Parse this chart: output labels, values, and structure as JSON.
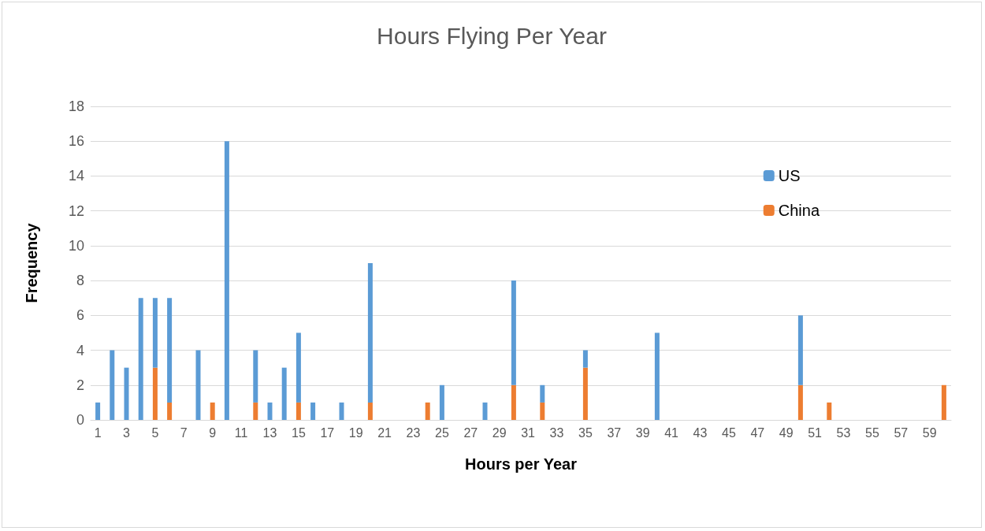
{
  "chart_data": {
    "type": "bar",
    "title": "Hours Flying Per Year",
    "xlabel": "Hours per Year",
    "ylabel": "Frequency",
    "x": [
      1,
      2,
      3,
      4,
      5,
      6,
      7,
      8,
      9,
      10,
      11,
      12,
      13,
      14,
      15,
      16,
      17,
      18,
      19,
      20,
      21,
      22,
      23,
      24,
      25,
      26,
      27,
      28,
      29,
      30,
      31,
      32,
      33,
      34,
      35,
      36,
      37,
      38,
      39,
      40,
      41,
      42,
      43,
      44,
      45,
      46,
      47,
      48,
      49,
      50,
      51,
      52,
      53,
      54,
      55,
      56,
      57,
      58,
      59,
      60
    ],
    "xlim": [
      0.5,
      60.5
    ],
    "xticks": [
      1,
      3,
      5,
      7,
      9,
      11,
      13,
      15,
      17,
      19,
      21,
      23,
      25,
      27,
      29,
      31,
      33,
      35,
      37,
      39,
      41,
      43,
      45,
      47,
      49,
      51,
      53,
      55,
      57,
      59
    ],
    "stacked": true,
    "series": [
      {
        "name": "China",
        "color": "#ed7d31",
        "values": [
          0,
          0,
          0,
          0,
          3,
          1,
          0,
          0,
          1,
          0,
          0,
          1,
          0,
          0,
          1,
          0,
          0,
          0,
          0,
          1,
          0,
          0,
          0,
          1,
          0,
          0,
          0,
          0,
          0,
          2,
          0,
          1,
          0,
          0,
          3,
          0,
          0,
          0,
          0,
          0,
          0,
          0,
          0,
          0,
          0,
          0,
          0,
          0,
          0,
          2,
          0,
          1,
          0,
          0,
          0,
          0,
          0,
          0,
          0,
          2
        ]
      },
      {
        "name": "US",
        "color": "#5b9bd5",
        "values": [
          1,
          4,
          3,
          7,
          4,
          6,
          0,
          4,
          0,
          16,
          0,
          3,
          1,
          3,
          4,
          1,
          0,
          1,
          0,
          8,
          0,
          0,
          0,
          0,
          2,
          0,
          0,
          1,
          0,
          6,
          0,
          1,
          0,
          0,
          1,
          0,
          0,
          0,
          0,
          5,
          0,
          0,
          0,
          0,
          0,
          0,
          0,
          0,
          0,
          4,
          0,
          0,
          0,
          0,
          0,
          0,
          0,
          0,
          0,
          0
        ]
      }
    ],
    "ylim": [
      0,
      18
    ],
    "yticks": [
      0,
      2,
      4,
      6,
      8,
      10,
      12,
      14,
      16,
      18
    ],
    "grid": "y",
    "legend": "top right"
  }
}
